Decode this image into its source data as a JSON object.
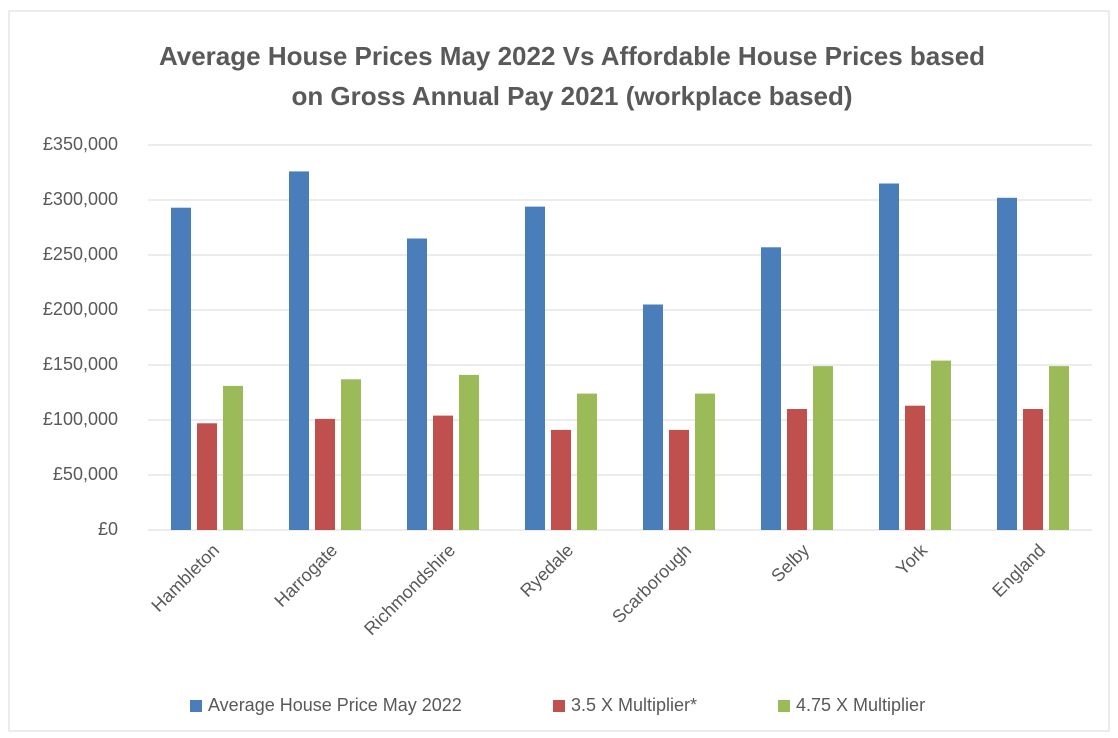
{
  "chart_data": {
    "type": "bar",
    "title": [
      "Average House Prices May 2022 Vs Affordable House Prices based",
      "on Gross Annual Pay 2021 (workplace based)"
    ],
    "categories": [
      "Hambleton",
      "Harrogate",
      "Richmondshire",
      "Ryedale",
      "Scarborough",
      "Selby",
      "York",
      "England"
    ],
    "series": [
      {
        "name": "Average House Price May 2022",
        "color": "#4a7ebb",
        "values": [
          293000,
          326000,
          265000,
          294000,
          205000,
          257000,
          315000,
          302000
        ]
      },
      {
        "name": "3.5 X Multiplier*",
        "color": "#c0504d",
        "values": [
          97000,
          101000,
          104000,
          91000,
          91000,
          110000,
          113000,
          110000
        ]
      },
      {
        "name": "4.75 X Multiplier",
        "color": "#9bbb59",
        "values": [
          131000,
          137000,
          141000,
          124000,
          124000,
          149000,
          154000,
          149000
        ]
      }
    ],
    "ylim": [
      0,
      350000
    ],
    "yticks": [
      {
        "value": 0,
        "label": "£0"
      },
      {
        "value": 50000,
        "label": "£50,000"
      },
      {
        "value": 100000,
        "label": "£100,000"
      },
      {
        "value": 150000,
        "label": "£150,000"
      },
      {
        "value": 200000,
        "label": "£200,000"
      },
      {
        "value": 250000,
        "label": "£250,000"
      },
      {
        "value": 300000,
        "label": "£300,000"
      },
      {
        "value": 350000,
        "label": "£350,000"
      }
    ],
    "grid": true,
    "legend": "bottom"
  }
}
